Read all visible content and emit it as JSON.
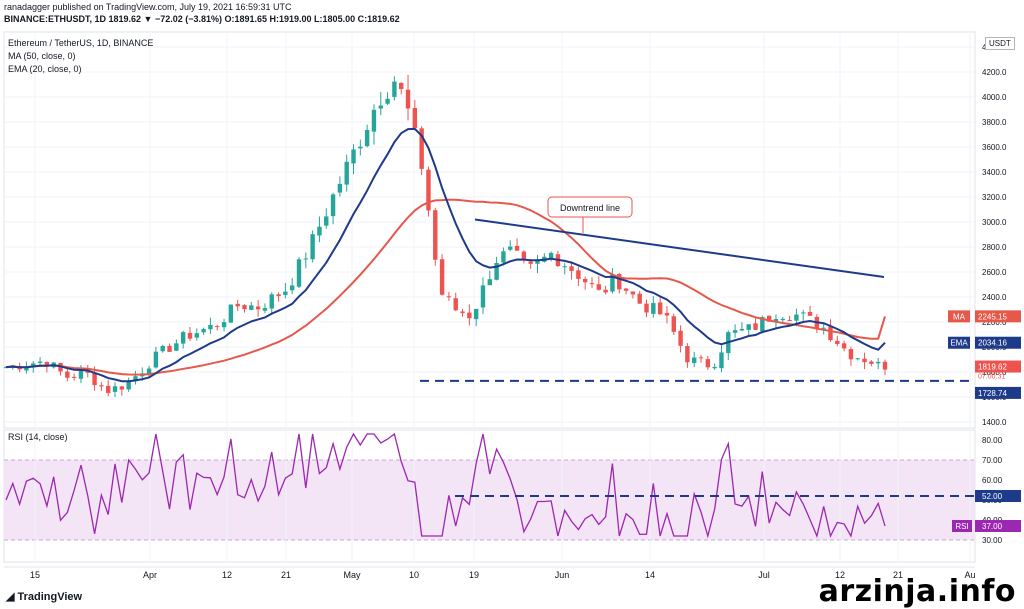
{
  "header": {
    "line1": "ranadagger published on TradingView.com, July 19, 2021 16:59:31 UTC",
    "line2": "BINANCE:ETHUSDT, 1D 1819.62 ▼ −72.02 (−3.81%) O:1891.65 H:1919.00 L:1805.00 C:1819.62"
  },
  "legend": {
    "symbol": "Ethereum / TetherUS, 1D, BINANCE",
    "ma": "MA (50, close, 0)",
    "ema": "EMA (20, close, 0)",
    "rsi": "RSI (14, close)"
  },
  "currency_label": "USDT",
  "footer": {
    "logo": "TradingView",
    "watermark": "arzinja.info"
  },
  "colors": {
    "up": "#26a69a",
    "down": "#ef5350",
    "ma": "#e6594a",
    "ema": "#1e3a8a",
    "rsi": "#9c27b0",
    "rsi_band": "#f3e5f5",
    "level": "#1e3a8a"
  },
  "chart_data": [
    {
      "type": "candlestick",
      "title": "Ethereum / TetherUS, 1D, BINANCE",
      "y_ticks": [
        1400,
        1600,
        1800,
        2000,
        2200,
        2400,
        2600,
        2800,
        3000,
        3200,
        3400,
        3600,
        3800,
        4000,
        4200,
        4400
      ],
      "ylim": [
        1380,
        4430
      ],
      "x_tick_labels": [
        "15",
        "Apr",
        "12",
        "21",
        "May",
        "10",
        "19",
        "Jun",
        "14",
        "Jul",
        "12",
        "21",
        "Au"
      ],
      "ohlc_samples": [
        {
          "date": "Mar 19",
          "close": 1880
        },
        {
          "date": "Apr 1",
          "close": 1910
        },
        {
          "date": "Apr 12",
          "close": 2170
        },
        {
          "date": "Apr 21",
          "close": 2380
        },
        {
          "date": "May 1",
          "close": 2950
        },
        {
          "date": "May 10",
          "close": 4130
        },
        {
          "date": "May 12",
          "close": 4200
        },
        {
          "date": "May 19",
          "close": 2780
        },
        {
          "date": "Jun 1",
          "close": 2720
        },
        {
          "date": "Jun 14",
          "close": 2560
        },
        {
          "date": "Jun 22",
          "close": 1880
        },
        {
          "date": "Jul 1",
          "close": 2180
        },
        {
          "date": "Jul 7",
          "close": 2320
        },
        {
          "date": "Jul 19",
          "close": 1819.62
        }
      ],
      "series": [
        {
          "name": "MA (50, close, 0)",
          "last_value": 2245.15
        },
        {
          "name": "EMA (20, close, 0)",
          "last_value": 2034.16
        }
      ],
      "price_labels": [
        {
          "text": "MA",
          "value": "2245.15"
        },
        {
          "text": "EMA",
          "value": "2034.16"
        },
        {
          "text": "",
          "value": "1819.62",
          "sub": "07:00:31"
        },
        {
          "text": "",
          "value": "1728.74"
        }
      ],
      "annotations": [
        {
          "text": "Downtrend line"
        },
        {
          "text": "",
          "note": "support 1728.74"
        }
      ],
      "last_close": 1819.62,
      "support": 1728.74
    },
    {
      "type": "line",
      "title": "RSI (14, close)",
      "y_ticks": [
        30,
        40,
        50,
        60,
        70,
        80
      ],
      "ylim": [
        27,
        85
      ],
      "band": [
        30,
        70
      ],
      "levels": [
        {
          "value": 52.0,
          "label": "52.00"
        }
      ],
      "last_value": 37.0,
      "last_label": "RSI",
      "last_value_text": "37.00"
    }
  ]
}
